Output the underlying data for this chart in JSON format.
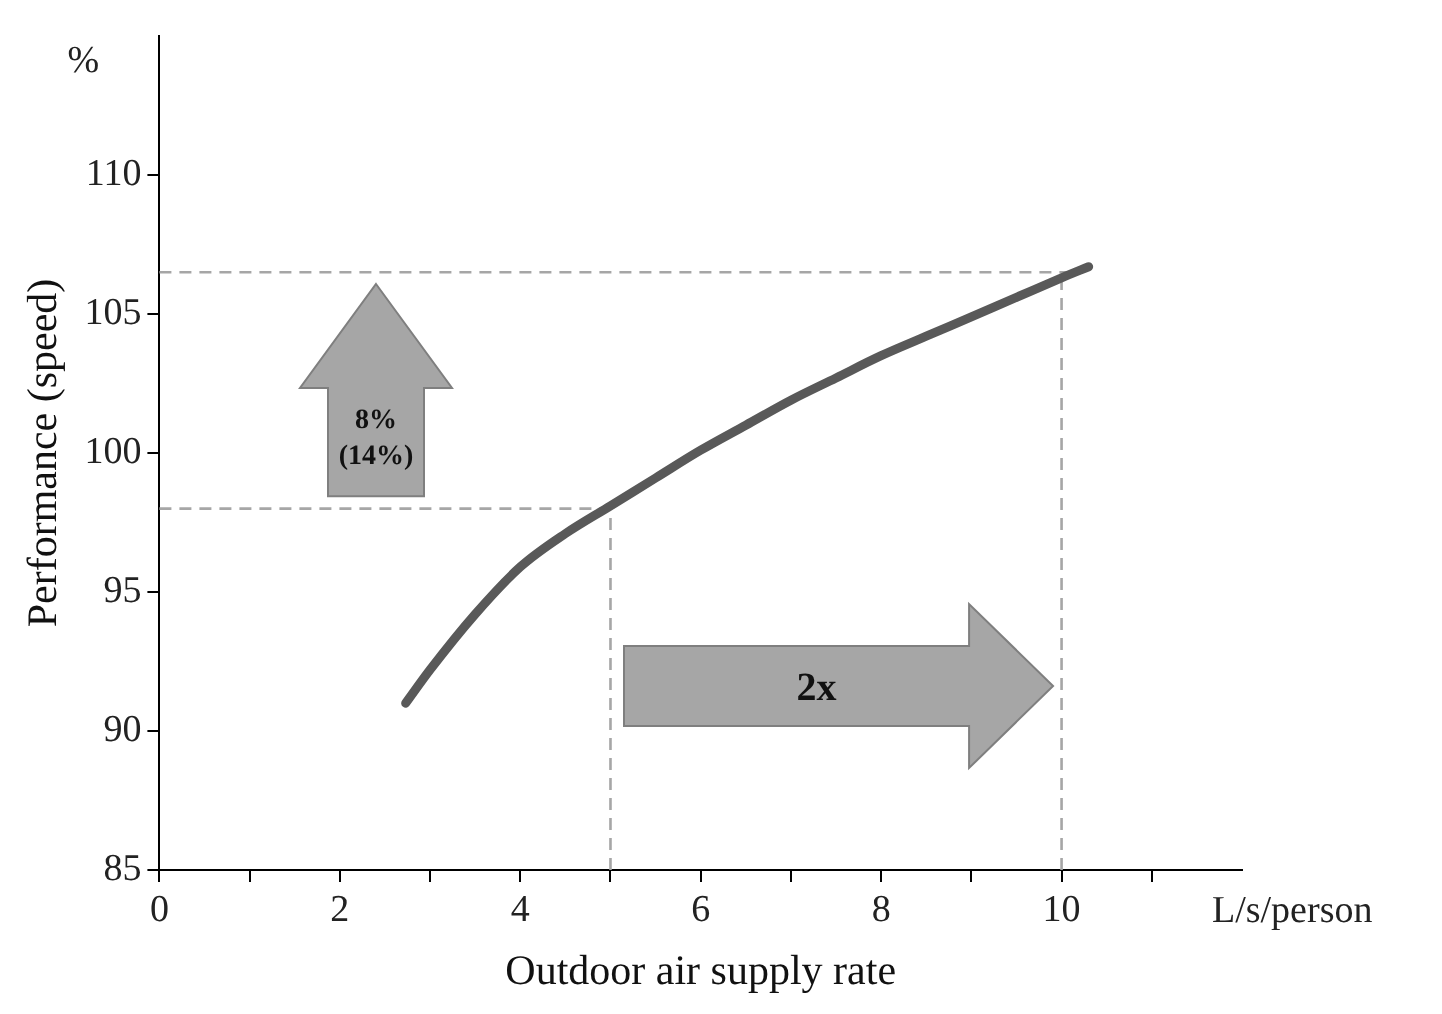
{
  "chart_data": {
    "type": "line",
    "xlabel": "Outdoor air supply rate",
    "ylabel": "Performance (speed)",
    "x": [
      2.73,
      3,
      3.5,
      4,
      4.5,
      5,
      5.5,
      6,
      6.5,
      7,
      7.5,
      8,
      8.5,
      9,
      9.5,
      10,
      10.3
    ],
    "series": [
      {
        "color": "#595959",
        "values": [
          91.0,
          92.2,
          94.2,
          95.9,
          97.1,
          98.1,
          99.1,
          100.1,
          101.0,
          101.9,
          102.7,
          103.5,
          104.2,
          104.9,
          105.6,
          106.3,
          106.7
        ]
      }
    ],
    "xlim": [
      0,
      12
    ],
    "xticks": [
      0,
      {
        "value": 1,
        "label": null
      },
      2,
      {
        "value": 3,
        "label": null
      },
      4,
      {
        "value": 5,
        "label": null
      },
      6,
      {
        "value": 7,
        "label": null
      },
      8,
      {
        "value": 9,
        "label": null
      },
      10,
      {
        "value": 11,
        "label": null
      }
    ],
    "ylim": [
      85,
      115
    ],
    "yticks": [
      85,
      90,
      95,
      100,
      105,
      110
    ],
    "ref_lines": [
      {
        "axis": "y",
        "value": 98,
        "color": "#a6a6a6",
        "line_style": "dashed"
      },
      {
        "axis": "y",
        "value": 106.5,
        "color": "#a6a6a6",
        "line_style": "dashed"
      },
      {
        "axis": "x",
        "value": 5,
        "color": "#a6a6a6",
        "line_style": "dashed"
      },
      {
        "axis": "x",
        "value": 10,
        "color": "#a6a6a6",
        "line_style": "dashed"
      }
    ],
    "annotations": [
      "%",
      "L/s/person",
      "8%\n(14%)",
      "2x"
    ],
    "grid": false,
    "legend": false,
    "marker": "none",
    "line_style": "solid"
  }
}
